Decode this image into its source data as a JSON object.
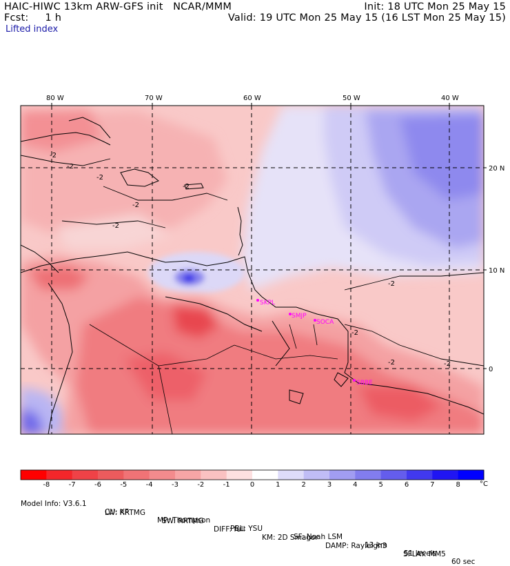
{
  "header": {
    "title_left": "HAIC-HIWC 13km ARW-GFS init   NCAR/MMM",
    "fcst": "Fcst:     1 h",
    "init": "Init: 18 UTC Mon 25 May 15",
    "valid": "Valid: 19 UTC Mon 25 May 15 (16 LST Mon 25 May 15)",
    "field": "Lifted index"
  },
  "map": {
    "lon_labels": [
      "80 W",
      "70 W",
      "60 W",
      "50 W",
      "40 W"
    ],
    "lat_labels": [
      "20 N",
      "10 N",
      "0"
    ],
    "contour_label": "-2",
    "stations": [
      "SKPL",
      "SMJP",
      "SOCA",
      "SBBE"
    ],
    "colors": {
      "strong_neg": "#e8283a",
      "neg": "#f37d80",
      "weak_neg": "#f9c4c4",
      "neutral": "#f5f2f8",
      "weak_pos": "#dcd8f7",
      "pos": "#a7a3f1",
      "strong_pos": "#6b65ea"
    }
  },
  "colorbar": {
    "labels": [
      "-8",
      "-7",
      "-6",
      "-5",
      "-4",
      "-3",
      "-2",
      "-1",
      "0",
      "1",
      "2",
      "3",
      "4",
      "5",
      "6",
      "7",
      "8"
    ],
    "unit": "°C",
    "colors": [
      "#ff0000",
      "#f4262a",
      "#ef4247",
      "#ec5b5d",
      "#f07376",
      "#f38b8d",
      "#f7a5a6",
      "#fac1c1",
      "#fde0e0",
      "#ffffff",
      "#dedcfa",
      "#c0bdf6",
      "#a19df2",
      "#827dee",
      "#645ded",
      "#4139ef",
      "#2015f3",
      "#0000ff"
    ]
  },
  "footer": {
    "line1": [
      "Model Info: V3.6.1",
      "CU: KF",
      "MP: Thompson",
      "PBL: YSU",
      "SF: Noah LSM",
      "13 km",
      "51 levels",
      "60 sec"
    ],
    "line2": [
      "LW: RRTMG",
      "SW: RRTMG",
      "DIFF: full",
      "KM: 2D Smagor",
      "DAMP: Rayleigh3",
      "SFLAY: MM5"
    ]
  }
}
